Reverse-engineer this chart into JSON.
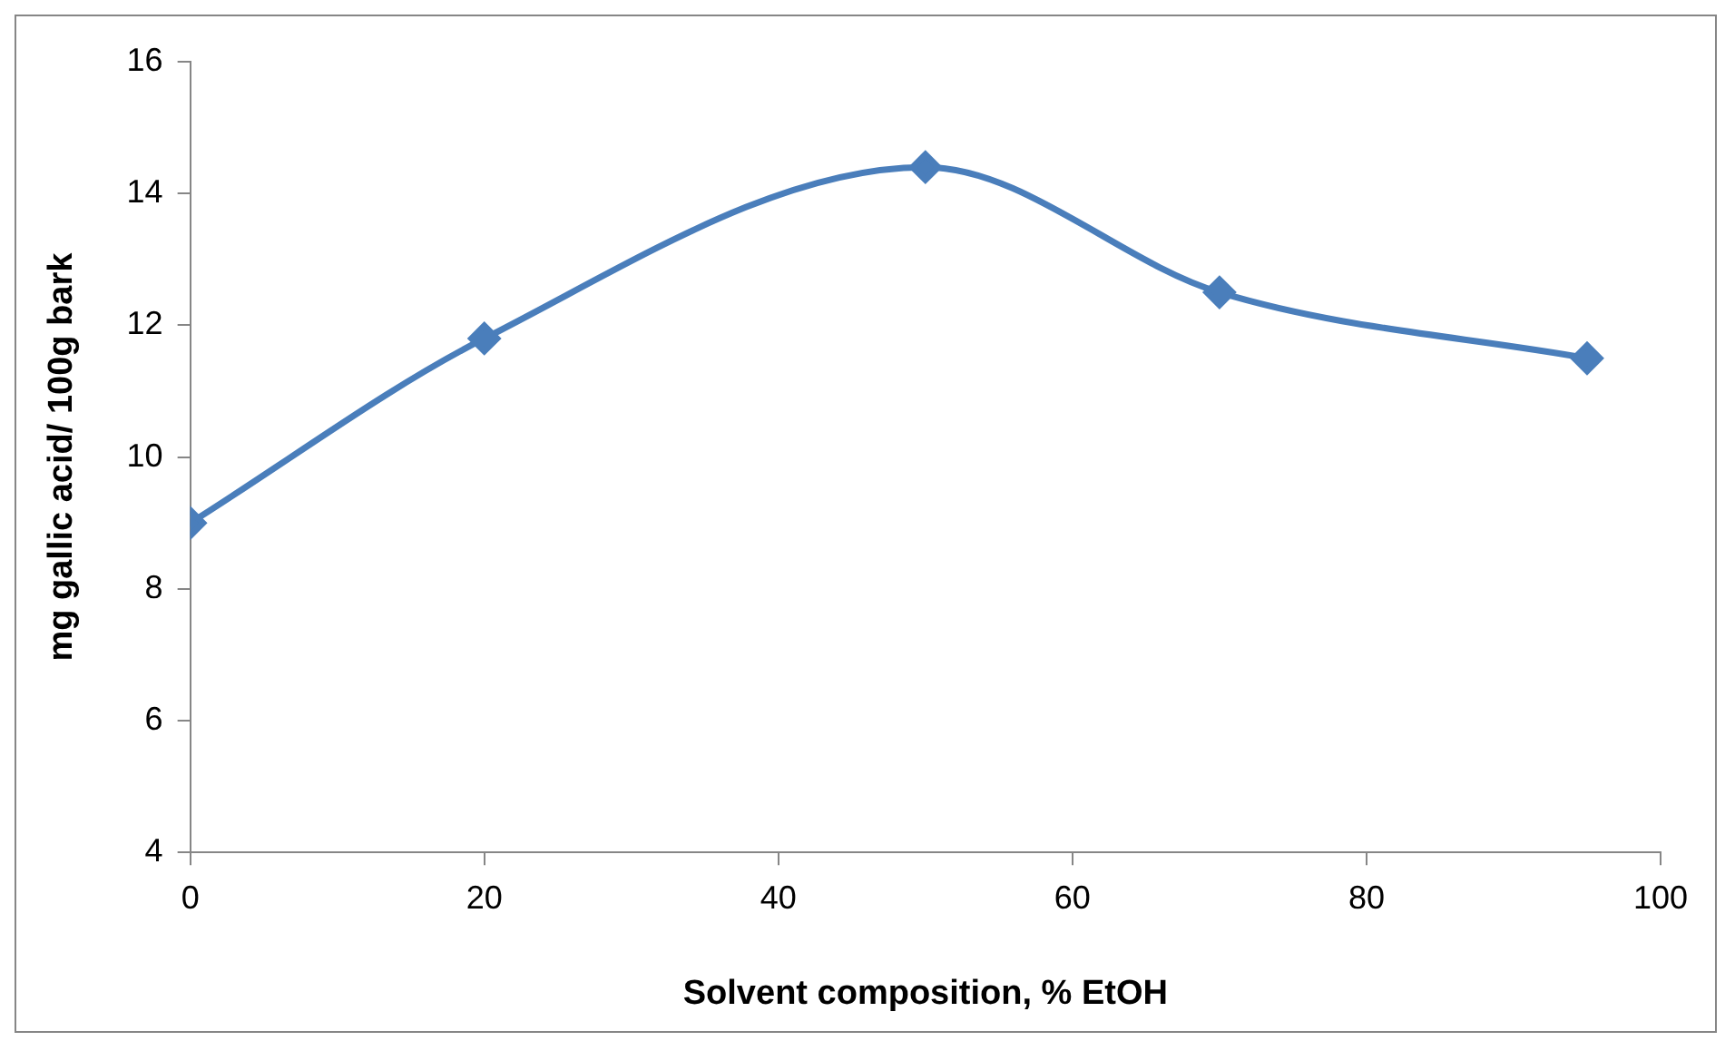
{
  "chart_data": {
    "type": "line",
    "xlabel": "Solvent composition, % EtOH",
    "ylabel": "mg gallic acid/ 100g bark",
    "x": [
      0,
      20,
      50,
      70,
      95
    ],
    "series": [
      {
        "color": "#4a7ebb",
        "values": [
          9.0,
          11.8,
          14.4,
          12.5,
          11.5
        ]
      }
    ],
    "xlim": [
      0,
      100
    ],
    "xticks": [
      0,
      20,
      40,
      60,
      80,
      100
    ],
    "ylim": [
      4,
      16
    ],
    "yticks": [
      4,
      6,
      8,
      10,
      12,
      14,
      16
    ],
    "grid": false,
    "legend": false,
    "marker": "diamond",
    "line_style": "solid"
  }
}
